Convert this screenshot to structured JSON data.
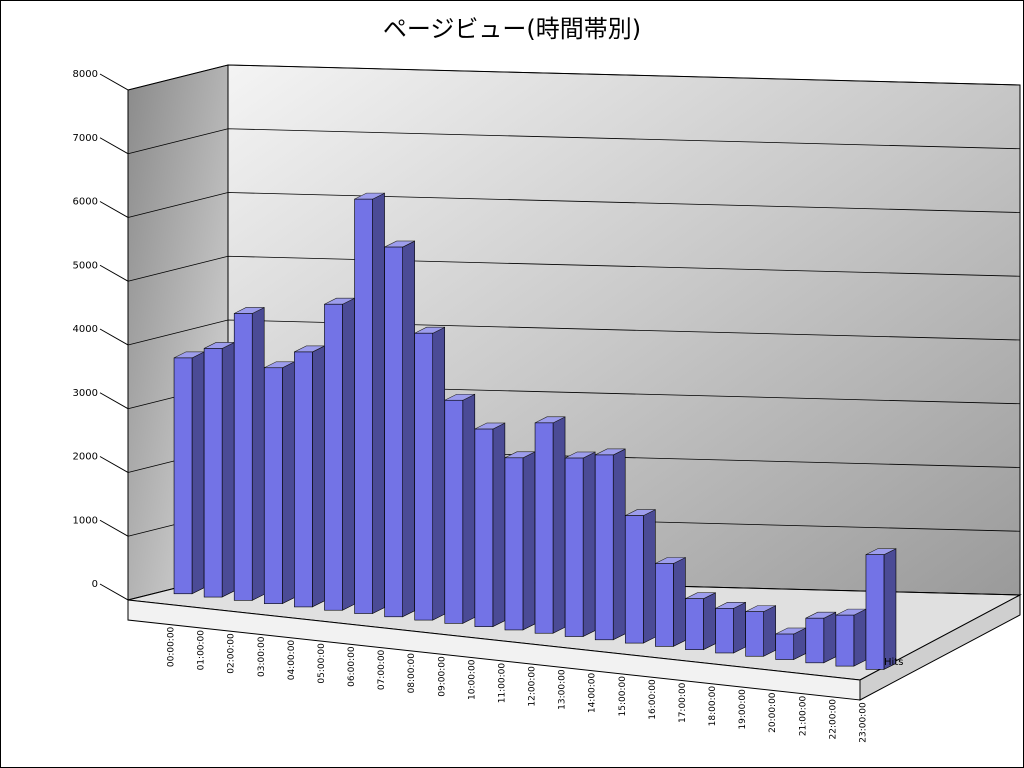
{
  "chart_data": {
    "type": "bar3d",
    "title": "ページビュー(時間帯別)",
    "categories": [
      "00:00:00",
      "01:00:00",
      "02:00:00",
      "03:00:00",
      "04:00:00",
      "05:00:00",
      "06:00:00",
      "07:00:00",
      "08:00:00",
      "09:00:00",
      "10:00:00",
      "11:00:00",
      "12:00:00",
      "13:00:00",
      "14:00:00",
      "15:00:00",
      "16:00:00",
      "17:00:00",
      "18:00:00",
      "19:00:00",
      "20:00:00",
      "21:00:00",
      "22:00:00",
      "23:00:00"
    ],
    "series": [
      {
        "name": "Hits",
        "color": "#7373e6",
        "values": [
          3700,
          3900,
          4500,
          3700,
          4000,
          4800,
          6500,
          5800,
          4500,
          3500,
          3100,
          2700,
          3300,
          2800,
          2900,
          2000,
          1300,
          800,
          700,
          700,
          400,
          700,
          800,
          1800
        ]
      }
    ],
    "ylim": [
      0,
      8000
    ],
    "yticks": [
      0,
      1000,
      2000,
      3000,
      4000,
      5000,
      6000,
      7000,
      8000
    ],
    "grid": true
  }
}
